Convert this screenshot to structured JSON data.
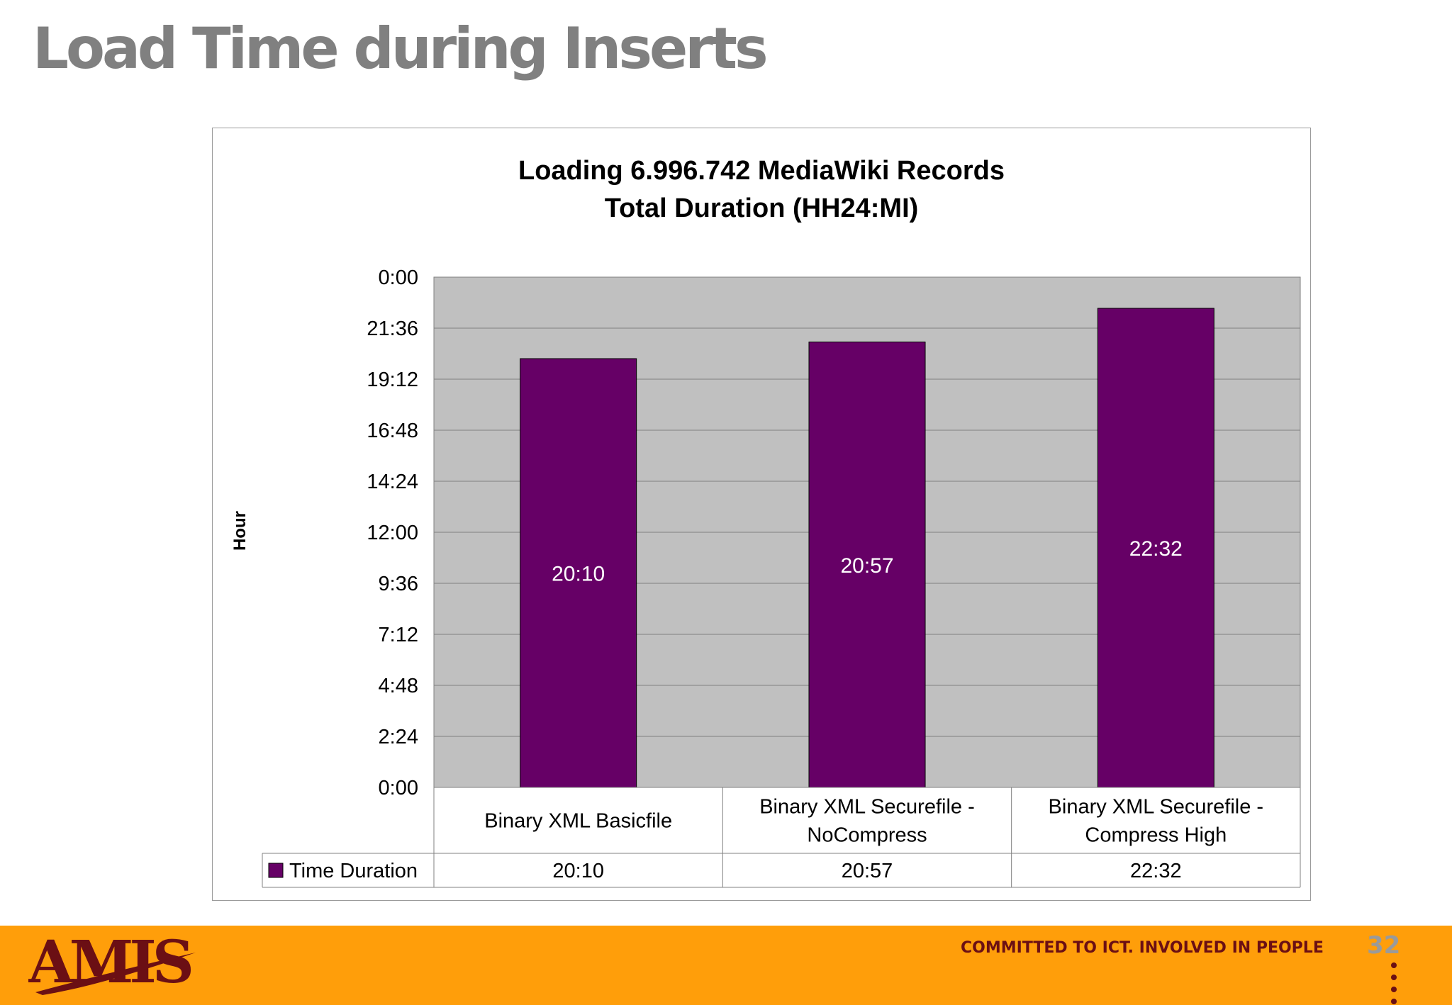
{
  "slide": {
    "title": "Load Time during Inserts",
    "tagline": "COMMITTED TO ICT. INVOLVED IN PEOPLE",
    "page_number": "32",
    "logo_text": "AMIS",
    "footer_color": "#FF9E0A",
    "logo_color": "#6b0f14"
  },
  "chart_data": {
    "type": "bar",
    "title": "Loading 6.996.742 MediaWiki Records",
    "subtitle": "Total Duration (HH24:MI)",
    "ylabel": "Hour",
    "xlabel": "",
    "y_unit": "minutes",
    "ylim": [
      0,
      1440
    ],
    "y_ticks": [
      0,
      144,
      288,
      432,
      576,
      720,
      864,
      1008,
      1152,
      1296,
      1440
    ],
    "y_tick_labels": [
      "0:00",
      "2:24",
      "4:48",
      "7:12",
      "9:36",
      "12:00",
      "14:24",
      "16:48",
      "19:12",
      "21:36",
      "0:00"
    ],
    "categories": [
      [
        "Binary XML Basicfile"
      ],
      [
        "Binary XML Securefile -",
        "NoCompress"
      ],
      [
        "Binary XML Securefile -",
        "Compress High"
      ]
    ],
    "series": [
      {
        "name": "Time Duration",
        "values": [
          1210,
          1257,
          1352
        ],
        "labels": [
          "20:10",
          "20:57",
          "22:32"
        ],
        "color": "#660066"
      }
    ],
    "plot_background": "#C0C0C0",
    "grid": true,
    "legend": "data-table"
  }
}
